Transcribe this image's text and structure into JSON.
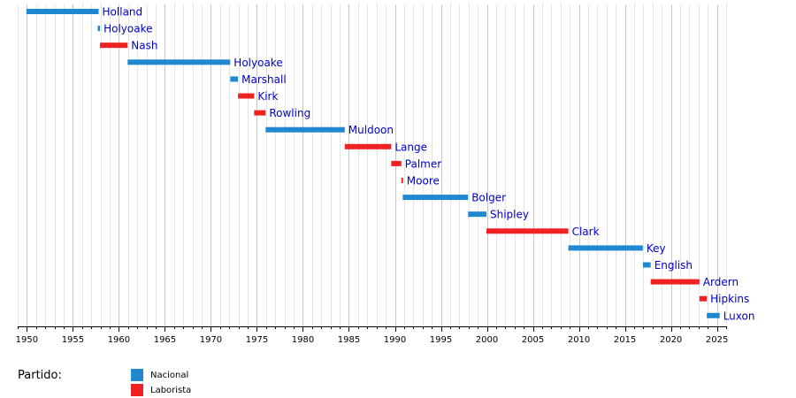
{
  "chart_data": {
    "type": "timeline",
    "x_axis": {
      "range": [
        1949,
        2026
      ],
      "tick_labels": [
        "1950",
        "1955",
        "1960",
        "1965",
        "1970",
        "1975",
        "1980",
        "1985",
        "1990",
        "1995",
        "2000",
        "2005",
        "2010",
        "2015",
        "2020",
        "2025"
      ]
    },
    "grid": true,
    "legend": {
      "title": "Partido:",
      "position": "bottom-left",
      "entries": [
        {
          "party": "national",
          "label": "Nacional",
          "color": "#1f88d0"
        },
        {
          "party": "labour",
          "label": "Laborista",
          "color": "#ee2222"
        }
      ]
    },
    "series": [
      {
        "name": "Holland",
        "party": "national",
        "start": 1949.95,
        "end": 1957.8
      },
      {
        "name": "Holyoake",
        "party": "national",
        "start": 1957.7,
        "end": 1957.95
      },
      {
        "name": "Nash",
        "party": "labour",
        "start": 1957.95,
        "end": 1960.95
      },
      {
        "name": "Holyoake",
        "party": "national",
        "start": 1960.95,
        "end": 1972.1
      },
      {
        "name": "Marshall",
        "party": "national",
        "start": 1972.1,
        "end": 1972.95
      },
      {
        "name": "Kirk",
        "party": "labour",
        "start": 1972.95,
        "end": 1974.7
      },
      {
        "name": "Rowling",
        "party": "labour",
        "start": 1974.7,
        "end": 1975.95
      },
      {
        "name": "Muldoon",
        "party": "national",
        "start": 1975.95,
        "end": 1984.55
      },
      {
        "name": "Lange",
        "party": "labour",
        "start": 1984.55,
        "end": 1989.6
      },
      {
        "name": "Palmer",
        "party": "labour",
        "start": 1989.6,
        "end": 1990.7
      },
      {
        "name": "Moore",
        "party": "labour",
        "start": 1990.7,
        "end": 1990.85
      },
      {
        "name": "Bolger",
        "party": "national",
        "start": 1990.85,
        "end": 1997.95
      },
      {
        "name": "Shipley",
        "party": "national",
        "start": 1997.95,
        "end": 1999.95
      },
      {
        "name": "Clark",
        "party": "labour",
        "start": 1999.95,
        "end": 2008.85
      },
      {
        "name": "Key",
        "party": "national",
        "start": 2008.85,
        "end": 2016.95
      },
      {
        "name": "English",
        "party": "national",
        "start": 2016.95,
        "end": 2017.8
      },
      {
        "name": "Ardern",
        "party": "labour",
        "start": 2017.8,
        "end": 2023.1
      },
      {
        "name": "Hipkins",
        "party": "labour",
        "start": 2023.1,
        "end": 2023.9
      },
      {
        "name": "Luxon",
        "party": "national",
        "start": 2023.9,
        "end": 2025.3
      }
    ]
  }
}
